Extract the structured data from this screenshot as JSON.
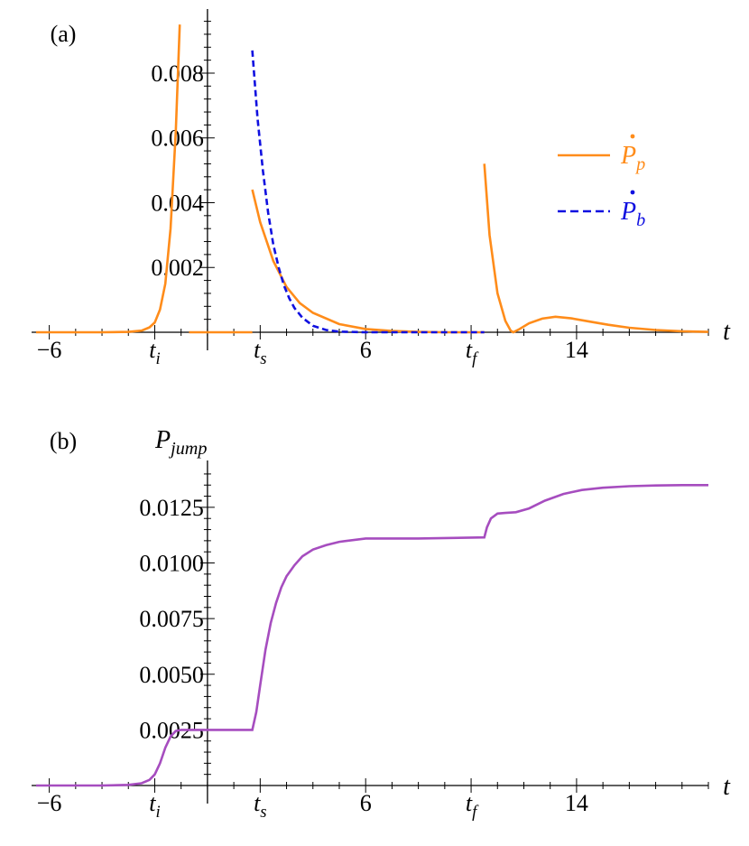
{
  "chart_data": [
    {
      "type": "line",
      "panel_label": "(a)",
      "xlabel": "t",
      "ylabel": "",
      "xlim": [
        -6.5,
        19
      ],
      "ylim": [
        0,
        0.0097
      ],
      "x_ticks": [
        {
          "value": -6,
          "label": "−6"
        },
        {
          "value": -2,
          "label": "t",
          "sub": "i"
        },
        {
          "value": 2,
          "label": "t",
          "sub": "s"
        },
        {
          "value": 6,
          "label": "6"
        },
        {
          "value": 10,
          "label": "t",
          "sub": "f"
        },
        {
          "value": 14,
          "label": "14"
        }
      ],
      "y_ticks": [
        {
          "value": 0.002,
          "label": "0.002"
        },
        {
          "value": 0.004,
          "label": "0.004"
        },
        {
          "value": 0.006,
          "label": "0.006"
        },
        {
          "value": 0.008,
          "label": "0.008"
        }
      ],
      "legend": {
        "position": "right",
        "entries": [
          {
            "label": "P",
            "sub": "p",
            "color": "#ff8c1a",
            "dash": "solid"
          },
          {
            "label": "P",
            "sub": "b",
            "color": "#1010e0",
            "dash": "dashed"
          }
        ]
      },
      "series": [
        {
          "color": "#ff8c1a",
          "dash": "solid",
          "segments": [
            [
              [
                -6.5,
                0
              ],
              [
                -4,
                0
              ],
              [
                -3,
                1e-05
              ],
              [
                -2.5,
                5e-05
              ],
              [
                -2.2,
                0.00015
              ],
              [
                -2,
                0.0003
              ],
              [
                -1.8,
                0.0007
              ],
              [
                -1.6,
                0.0015
              ],
              [
                -1.4,
                0.0032
              ],
              [
                -1.2,
                0.0062
              ],
              [
                -1.05,
                0.0095
              ]
            ],
            [
              [
                -0.7,
                0
              ],
              [
                1.7,
                0
              ]
            ],
            [
              [
                1.7,
                0.0044
              ],
              [
                2,
                0.0034
              ],
              [
                2.5,
                0.0022
              ],
              [
                3,
                0.0014
              ],
              [
                3.5,
                0.0009
              ],
              [
                4,
                0.0006
              ],
              [
                5,
                0.00025
              ],
              [
                6,
                0.0001
              ],
              [
                7,
                4e-05
              ],
              [
                8,
                1e-05
              ],
              [
                9,
                0
              ],
              [
                10.5,
                0
              ]
            ],
            [
              [
                10.5,
                0.0052
              ],
              [
                10.7,
                0.003
              ],
              [
                11,
                0.0012
              ],
              [
                11.3,
                0.00035
              ],
              [
                11.5,
                5e-05
              ],
              [
                11.6,
                0
              ],
              [
                11.8,
                8e-05
              ],
              [
                12.2,
                0.00028
              ],
              [
                12.7,
                0.00042
              ],
              [
                13.2,
                0.00048
              ],
              [
                13.8,
                0.00043
              ],
              [
                14.5,
                0.00033
              ],
              [
                15.2,
                0.00023
              ],
              [
                16,
                0.00014
              ],
              [
                17,
                7e-05
              ],
              [
                18,
                3e-05
              ],
              [
                19,
                1e-05
              ]
            ]
          ]
        },
        {
          "color": "#1010e0",
          "dash": "dashed",
          "segments": [
            [
              [
                1.7,
                0.0087
              ],
              [
                1.9,
                0.0066
              ],
              [
                2.1,
                0.005
              ],
              [
                2.3,
                0.0037
              ],
              [
                2.5,
                0.0027
              ],
              [
                2.7,
                0.002
              ],
              [
                2.9,
                0.00145
              ],
              [
                3.1,
                0.00105
              ],
              [
                3.3,
                0.00075
              ],
              [
                3.6,
                0.00045
              ],
              [
                4,
                0.0002
              ],
              [
                4.5,
                7e-05
              ],
              [
                5,
                2e-05
              ],
              [
                6,
                0
              ],
              [
                10.5,
                0
              ]
            ]
          ]
        }
      ]
    },
    {
      "type": "line",
      "panel_label": "(b)",
      "xlabel": "t",
      "ylabel": "P",
      "ylabel_sub": "jump",
      "xlim": [
        -6.5,
        19
      ],
      "ylim": [
        0,
        0.0142
      ],
      "x_ticks": [
        {
          "value": -6,
          "label": "−6"
        },
        {
          "value": -2,
          "label": "t",
          "sub": "i"
        },
        {
          "value": 2,
          "label": "t",
          "sub": "s"
        },
        {
          "value": 6,
          "label": "6"
        },
        {
          "value": 10,
          "label": "t",
          "sub": "f"
        },
        {
          "value": 14,
          "label": "14"
        }
      ],
      "y_ticks": [
        {
          "value": 0.0025,
          "label": "0.0025"
        },
        {
          "value": 0.005,
          "label": "0.0050"
        },
        {
          "value": 0.0075,
          "label": "0.0075"
        },
        {
          "value": 0.01,
          "label": "0.0100"
        },
        {
          "value": 0.0125,
          "label": "0.0125"
        }
      ],
      "series": [
        {
          "color": "#a64dbf",
          "dash": "solid",
          "segments": [
            [
              [
                -6.5,
                0
              ],
              [
                -4,
                0
              ],
              [
                -3,
                3e-05
              ],
              [
                -2.5,
                0.0001
              ],
              [
                -2.2,
                0.00025
              ],
              [
                -2,
                0.0005
              ],
              [
                -1.8,
                0.001
              ],
              [
                -1.6,
                0.0017
              ],
              [
                -1.4,
                0.0022
              ],
              [
                -1.2,
                0.00245
              ],
              [
                -1,
                0.0025
              ],
              [
                1.7,
                0.0025
              ],
              [
                1.85,
                0.0033
              ],
              [
                2,
                0.0045
              ],
              [
                2.2,
                0.0061
              ],
              [
                2.4,
                0.0073
              ],
              [
                2.6,
                0.0082
              ],
              [
                2.8,
                0.0089
              ],
              [
                3,
                0.0094
              ],
              [
                3.3,
                0.0099
              ],
              [
                3.6,
                0.0103
              ],
              [
                4,
                0.0106
              ],
              [
                4.5,
                0.0108
              ],
              [
                5,
                0.01095
              ],
              [
                6,
                0.0111
              ],
              [
                7,
                0.0111
              ],
              [
                8,
                0.0111
              ],
              [
                10.5,
                0.01115
              ],
              [
                10.6,
                0.0116
              ],
              [
                10.75,
                0.012
              ],
              [
                11,
                0.01222
              ],
              [
                11.3,
                0.01225
              ],
              [
                11.7,
                0.01228
              ],
              [
                12.2,
                0.01245
              ],
              [
                12.8,
                0.0128
              ],
              [
                13.5,
                0.0131
              ],
              [
                14.2,
                0.01328
              ],
              [
                15,
                0.01338
              ],
              [
                16,
                0.01345
              ],
              [
                17,
                0.01348
              ],
              [
                18,
                0.0135
              ],
              [
                19,
                0.0135
              ]
            ]
          ]
        }
      ]
    }
  ]
}
